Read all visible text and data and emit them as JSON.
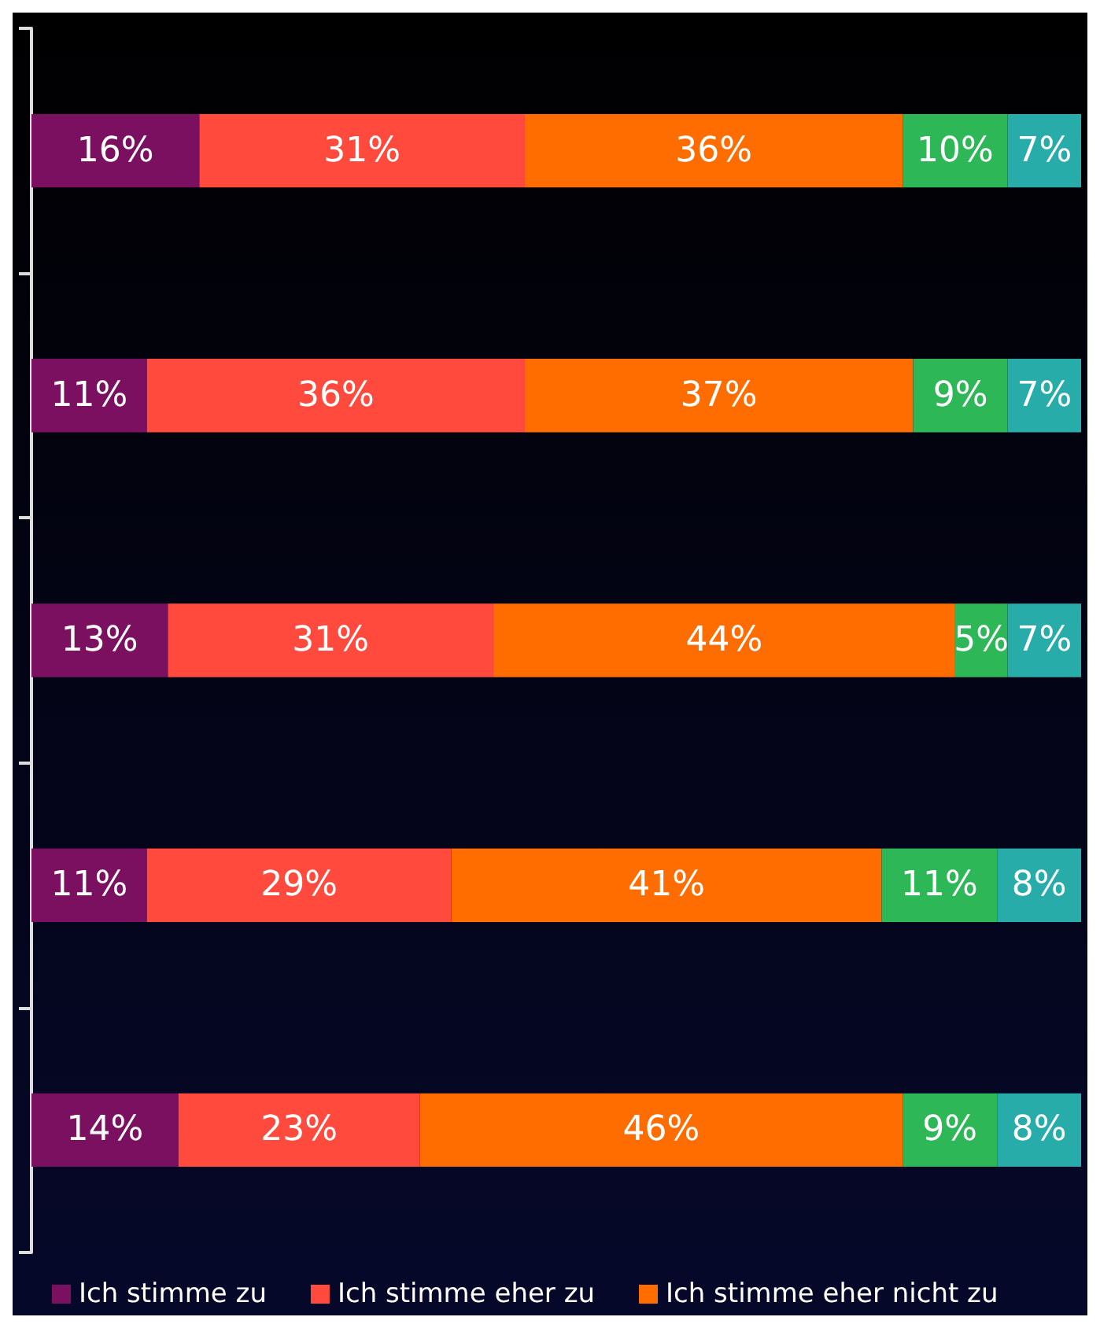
{
  "chart_data": {
    "type": "bar",
    "orientation": "horizontal",
    "stacked": true,
    "legend": "bottom",
    "categories": [
      null,
      null,
      null,
      null,
      null
    ],
    "series": [
      {
        "name": "Ich stimme zu",
        "color": "#7b1060",
        "values": [
          16,
          11,
          13,
          11,
          14
        ],
        "value_labels": [
          "16%",
          "11%",
          "13%",
          "11%",
          "14%"
        ]
      },
      {
        "name": "Ich stimme eher zu",
        "color": "#ff4a3d",
        "values": [
          31,
          36,
          31,
          29,
          23
        ],
        "value_labels": [
          "31%",
          "36%",
          "31%",
          "29%",
          "23%"
        ]
      },
      {
        "name": "Ich stimme eher nicht zu",
        "color": "#ff6d00",
        "values": [
          36,
          37,
          44,
          41,
          46
        ],
        "value_labels": [
          "36%",
          "37%",
          "44%",
          "41%",
          "46%"
        ]
      },
      {
        "color": "#2db757",
        "values": [
          10,
          9,
          5,
          11,
          9
        ],
        "value_labels": [
          "10%",
          "9%",
          "5%",
          "11%",
          "9%"
        ]
      },
      {
        "color": "#27aca9",
        "values": [
          7,
          7,
          7,
          8,
          8
        ],
        "value_labels": [
          "7%",
          "7%",
          "7%",
          "8%",
          "8%"
        ]
      }
    ]
  }
}
